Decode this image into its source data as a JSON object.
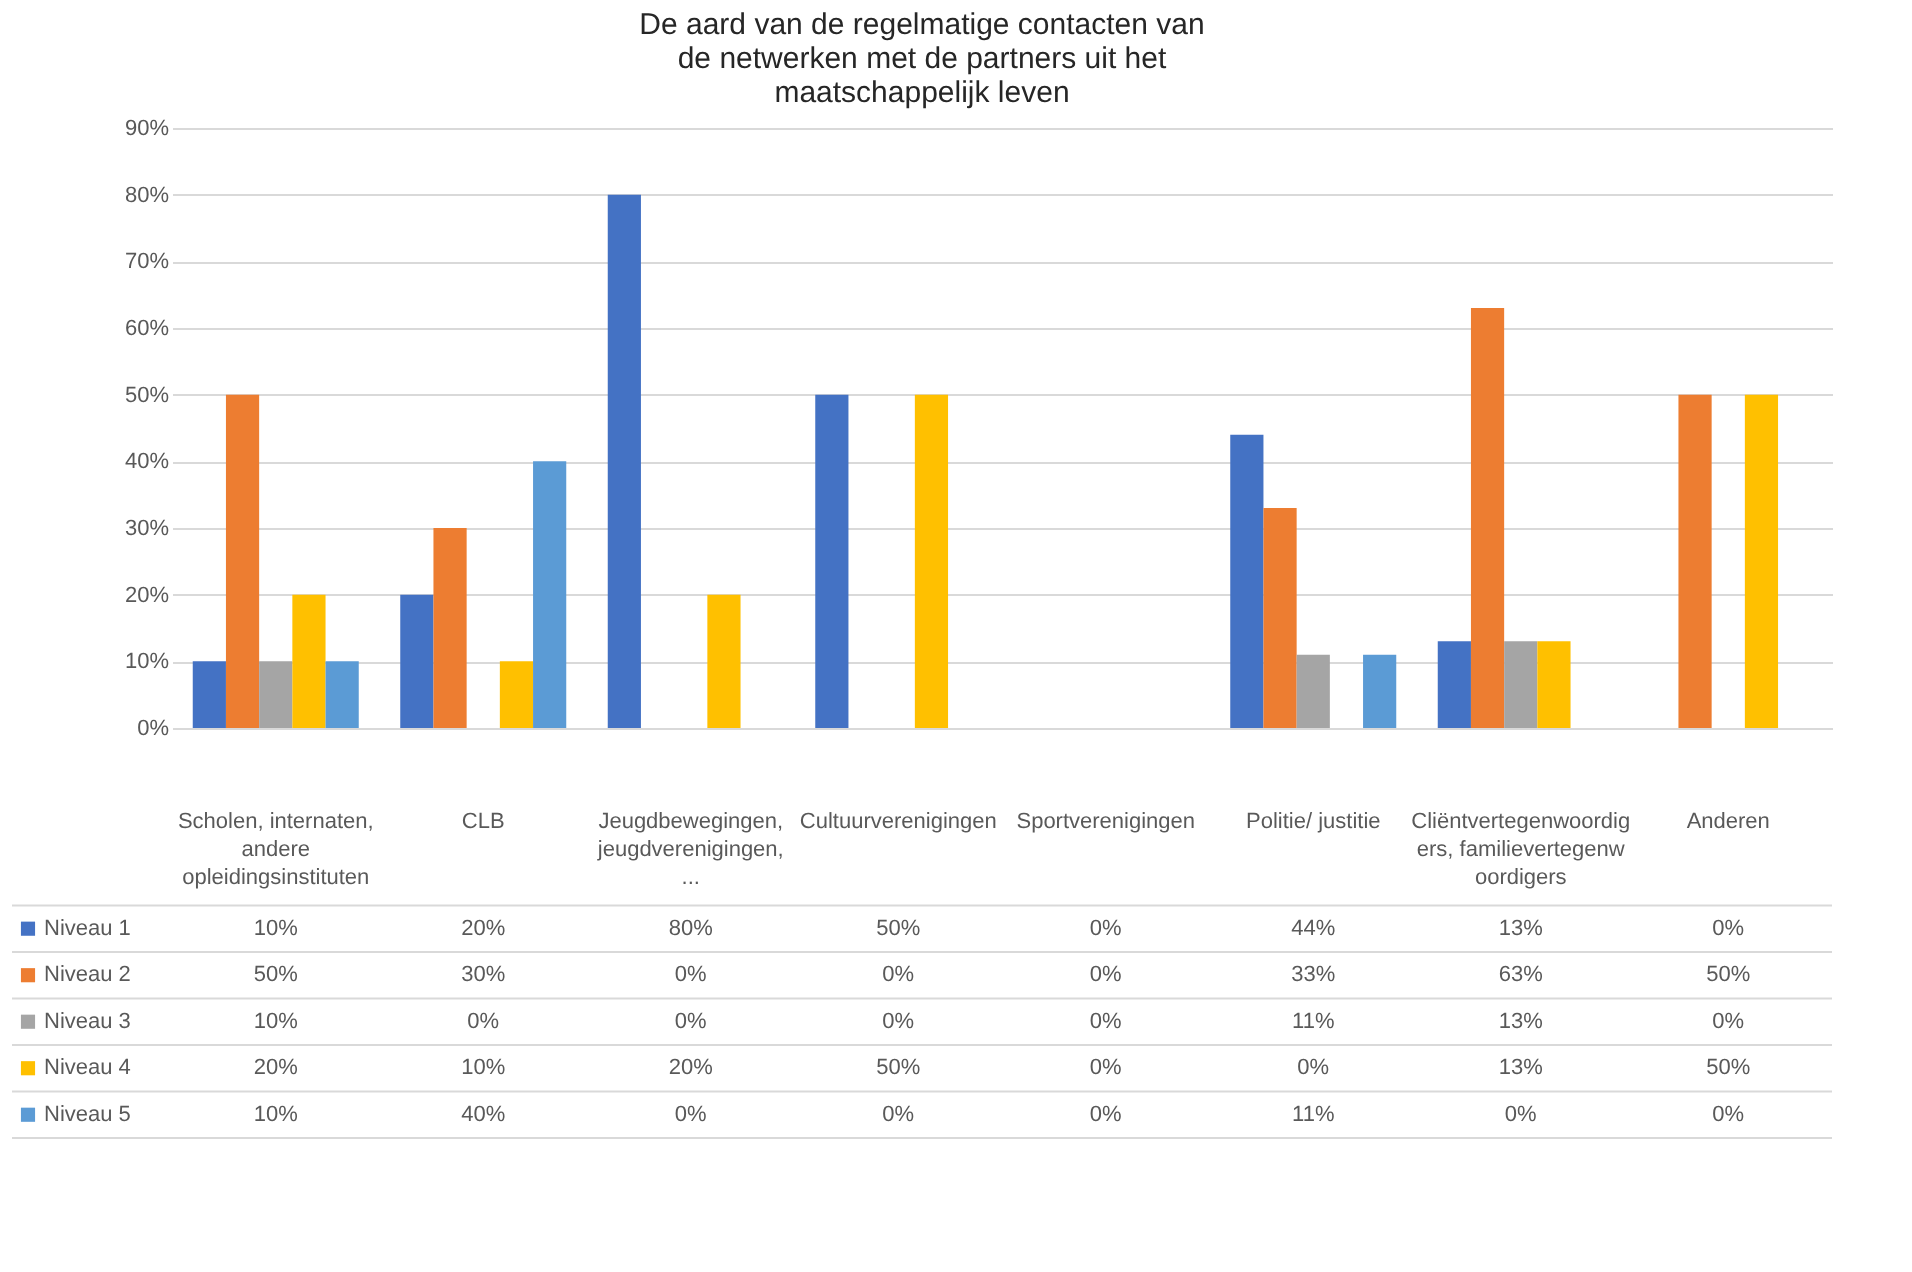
{
  "chart_data": {
    "type": "bar",
    "title": "De aard van de regelmatige contacten van de netwerken met de partners uit het maatschappelijk leven",
    "categories": [
      "Scholen, internaten, andere opleidingsinstituten",
      "CLB",
      "Jeugdbewegingen, jeugdverenigingen, ...",
      "Cultuurverenigingen",
      "Sportverenigingen",
      "Politie/ justitie",
      "Cliëntvertegenwoordigers, familievertegenwoordigers",
      "Anderen"
    ],
    "series": [
      {
        "name": "Niveau 1",
        "color": "#4472c4",
        "values": [
          10,
          20,
          80,
          50,
          0,
          44,
          13,
          0
        ],
        "value_labels": [
          "10%",
          "20%",
          "80%",
          "50%",
          "0%",
          "44%",
          "13%",
          "0%"
        ]
      },
      {
        "name": "Niveau 2",
        "color": "#ed7d31",
        "values": [
          50,
          30,
          0,
          0,
          0,
          33,
          63,
          50
        ],
        "value_labels": [
          "50%",
          "30%",
          "0%",
          "0%",
          "0%",
          "33%",
          "63%",
          "50%"
        ]
      },
      {
        "name": "Niveau 3",
        "color": "#a5a5a5",
        "values": [
          10,
          0,
          0,
          0,
          0,
          11,
          13,
          0
        ],
        "value_labels": [
          "10%",
          "0%",
          "0%",
          "0%",
          "0%",
          "11%",
          "13%",
          "0%"
        ]
      },
      {
        "name": "Niveau 4",
        "color": "#ffc000",
        "values": [
          20,
          10,
          20,
          50,
          0,
          0,
          13,
          50
        ],
        "value_labels": [
          "20%",
          "10%",
          "20%",
          "50%",
          "0%",
          "0%",
          "13%",
          "50%"
        ]
      },
      {
        "name": "Niveau 5",
        "color": "#5b9bd5",
        "values": [
          10,
          40,
          0,
          0,
          0,
          11,
          0,
          0
        ],
        "value_labels": [
          "10%",
          "40%",
          "0%",
          "0%",
          "0%",
          "11%",
          "0%",
          "0%"
        ]
      }
    ],
    "ylim": [
      0,
      90
    ],
    "yticks": [
      {
        "value": 0,
        "label": "0%"
      },
      {
        "value": 10,
        "label": "10%"
      },
      {
        "value": 20,
        "label": "20%"
      },
      {
        "value": 30,
        "label": "30%"
      },
      {
        "value": 40,
        "label": "40%"
      },
      {
        "value": 50,
        "label": "50%"
      },
      {
        "value": 60,
        "label": "60%"
      },
      {
        "value": 70,
        "label": "70%"
      },
      {
        "value": 80,
        "label": "80%"
      },
      {
        "value": 90,
        "label": "90%"
      }
    ],
    "grid": "y",
    "legend": "bottom"
  }
}
